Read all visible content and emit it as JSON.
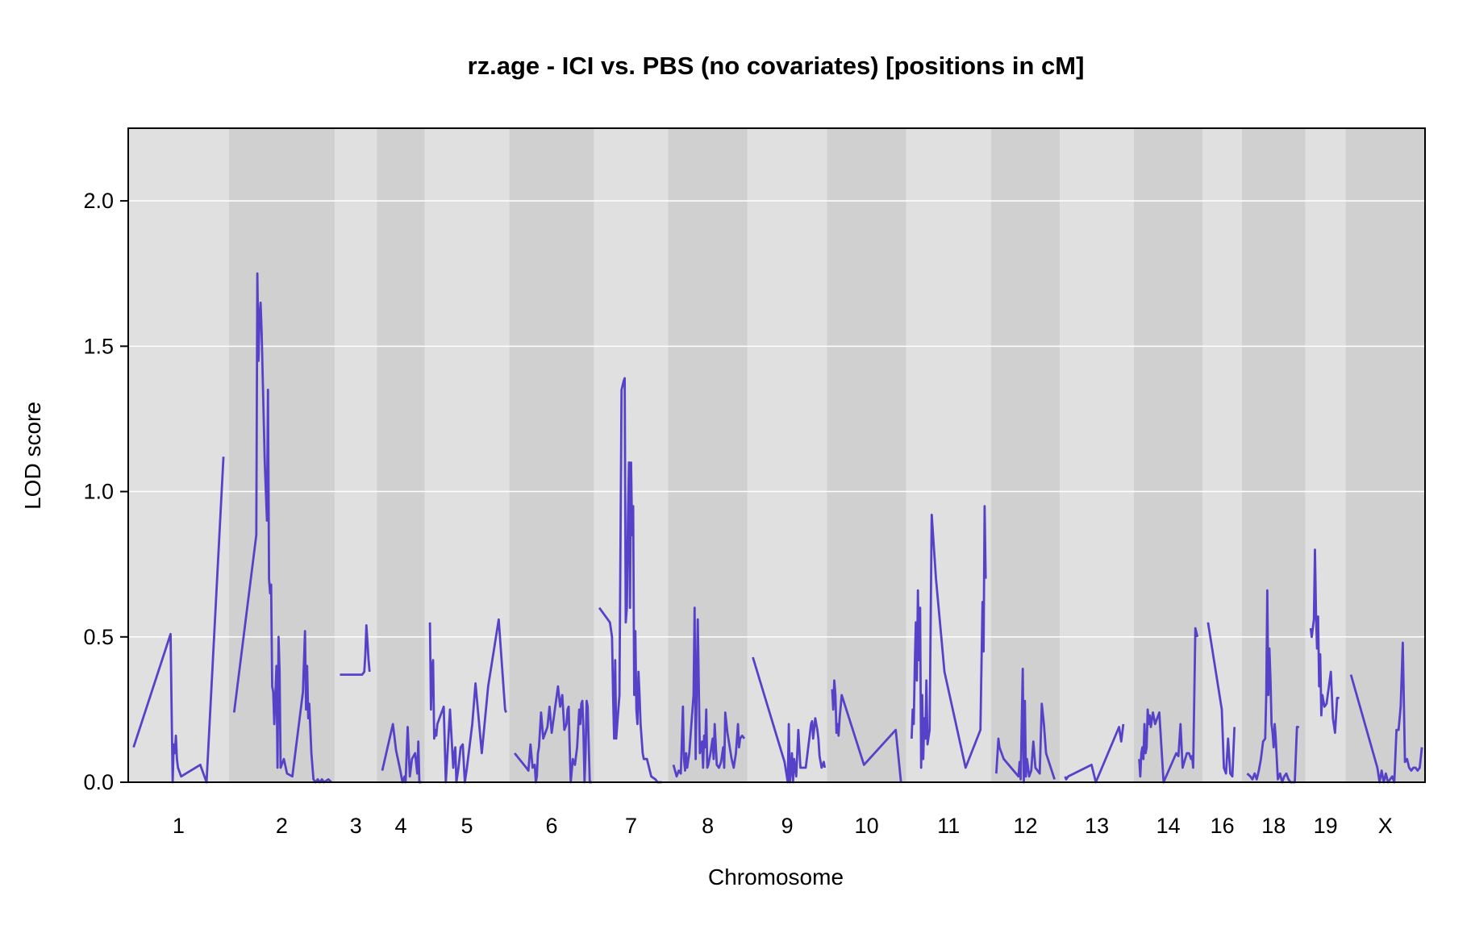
{
  "chart_data": {
    "type": "line",
    "title": "rz.age - ICI vs. PBS (no covariates) [positions in cM]",
    "xlabel": "Chromosome",
    "ylabel": "LOD score",
    "ylim": [
      0,
      2.25
    ],
    "yticks": [
      "0.0",
      "0.5",
      "1.0",
      "1.5",
      "2.0"
    ],
    "ytick_values": [
      0,
      0.5,
      1.0,
      1.5,
      2.0
    ],
    "grid": true,
    "line_color": "#5542c8",
    "band_colors": [
      "#e0e0e0",
      "#d0d0d0"
    ],
    "chromosomes": [
      {
        "name": "1",
        "length": 95,
        "x": [
          5,
          40,
          41,
          42,
          43,
          44,
          45,
          46,
          47,
          50,
          68,
          74,
          90
        ],
        "y": [
          0.12,
          0.51,
          0.25,
          0.0,
          0.13,
          0.1,
          0.16,
          0.08,
          0.05,
          0.02,
          0.06,
          0.0,
          1.12
        ]
      },
      {
        "name": "2",
        "length": 100,
        "x": [
          5,
          26,
          27,
          28,
          29,
          30,
          31,
          32,
          34,
          36,
          37,
          38,
          39,
          40,
          41,
          42,
          43,
          45,
          46,
          47,
          48,
          49,
          50,
          52,
          55,
          60,
          70,
          72,
          73,
          74,
          75,
          76,
          78,
          80,
          82,
          84,
          86,
          88,
          90,
          94,
          97
        ],
        "y": [
          0.24,
          0.85,
          1.75,
          1.45,
          1.6,
          1.65,
          1.55,
          1.4,
          1.1,
          0.9,
          1.35,
          0.7,
          0.65,
          0.68,
          0.33,
          0.31,
          0.2,
          0.4,
          0.05,
          0.5,
          0.38,
          0.05,
          0.06,
          0.08,
          0.03,
          0.02,
          0.31,
          0.52,
          0.25,
          0.4,
          0.22,
          0.27,
          0.1,
          0.01,
          0.0,
          0.01,
          0.0,
          0.01,
          0.0,
          0.01,
          0.0
        ]
      },
      {
        "name": "3",
        "length": 40,
        "x": [
          5,
          26,
          28,
          29,
          30,
          31,
          32,
          33
        ],
        "y": [
          0.37,
          0.37,
          0.38,
          0.44,
          0.54,
          0.48,
          0.42,
          0.38
        ]
      },
      {
        "name": "4",
        "length": 45,
        "x": [
          5,
          15,
          18,
          22,
          24,
          26,
          27,
          29,
          30,
          31,
          33,
          36,
          38,
          39,
          40,
          42
        ],
        "y": [
          0.04,
          0.2,
          0.11,
          0.04,
          0.0,
          0.02,
          0.0,
          0.19,
          0.1,
          0.02,
          0.08,
          0.1,
          0.03,
          0.14,
          0.0,
          0.0
        ]
      },
      {
        "name": "5",
        "length": 80,
        "x": [
          5,
          6,
          7,
          8,
          9,
          10,
          11,
          12,
          14,
          18,
          20,
          24,
          27,
          28,
          29,
          30,
          32,
          34,
          36,
          38,
          40,
          45,
          48,
          54,
          60,
          70,
          76,
          77
        ],
        "y": [
          0.55,
          0.25,
          0.4,
          0.42,
          0.15,
          0.18,
          0.16,
          0.2,
          0.22,
          0.26,
          0.0,
          0.25,
          0.05,
          0.1,
          0.12,
          0.0,
          0.05,
          0.12,
          0.13,
          0.0,
          0.05,
          0.2,
          0.34,
          0.1,
          0.33,
          0.56,
          0.25,
          0.24
        ]
      },
      {
        "name": "6",
        "length": 80,
        "x": [
          5,
          16,
          18,
          20,
          22,
          24,
          25,
          26,
          27,
          28,
          30,
          32,
          36,
          38,
          40,
          46,
          48,
          50,
          52,
          54,
          55,
          56,
          57,
          58,
          60,
          62,
          64,
          66,
          67,
          68,
          69,
          70,
          71,
          72,
          73,
          74,
          76,
          78
        ],
        "y": [
          0.1,
          0.05,
          0.04,
          0.13,
          0.05,
          0.06,
          0.0,
          0.02,
          0.1,
          0.12,
          0.24,
          0.15,
          0.19,
          0.26,
          0.17,
          0.33,
          0.26,
          0.3,
          0.18,
          0.2,
          0.25,
          0.26,
          0.12,
          0.0,
          0.08,
          0.06,
          0.12,
          0.25,
          0.2,
          0.27,
          0.28,
          0.18,
          0.0,
          0.1,
          0.28,
          0.26,
          0.0,
          0.0
        ]
      },
      {
        "name": "7",
        "length": 70,
        "x": [
          5,
          15,
          17,
          18,
          19,
          20,
          21,
          22,
          24,
          26,
          28,
          29,
          30,
          31,
          32,
          33,
          34,
          35,
          36,
          37,
          38,
          39,
          40,
          41,
          42,
          43,
          44,
          45,
          46,
          47,
          50,
          54,
          58,
          60,
          62,
          64
        ],
        "y": [
          0.6,
          0.55,
          0.5,
          0.3,
          0.15,
          0.42,
          0.15,
          0.2,
          0.3,
          1.35,
          1.38,
          1.39,
          0.55,
          0.6,
          0.9,
          1.1,
          0.6,
          1.1,
          0.85,
          0.95,
          0.3,
          0.52,
          0.25,
          0.2,
          0.38,
          0.3,
          0.2,
          0.15,
          0.1,
          0.08,
          0.08,
          0.02,
          0.01,
          0.0,
          0.0,
          0.0
        ]
      },
      {
        "name": "8",
        "length": 75,
        "x": [
          5,
          8,
          10,
          12,
          14,
          15,
          16,
          17,
          18,
          20,
          22,
          24,
          25,
          26,
          28,
          30,
          32,
          33,
          34,
          35,
          36,
          37,
          38,
          40,
          42,
          43,
          44,
          46,
          48,
          50,
          52,
          53,
          54,
          56,
          60,
          62,
          64,
          66,
          67,
          68,
          70,
          72
        ],
        "y": [
          0.06,
          0.02,
          0.04,
          0.03,
          0.26,
          0.08,
          0.04,
          0.1,
          0.05,
          0.1,
          0.2,
          0.3,
          0.6,
          0.08,
          0.56,
          0.1,
          0.14,
          0.05,
          0.16,
          0.12,
          0.25,
          0.05,
          0.06,
          0.1,
          0.15,
          0.08,
          0.2,
          0.06,
          0.05,
          0.07,
          0.12,
          0.05,
          0.24,
          0.17,
          0.08,
          0.05,
          0.1,
          0.2,
          0.12,
          0.15,
          0.16,
          0.15
        ]
      },
      {
        "name": "9",
        "length": 75,
        "x": [
          5,
          35,
          38,
          39,
          40,
          41,
          42,
          43,
          44,
          46,
          48,
          50,
          55,
          60,
          61,
          62,
          64,
          66,
          67,
          68,
          70,
          72,
          73
        ],
        "y": [
          0.43,
          0.07,
          0.0,
          0.2,
          0.0,
          0.04,
          0.1,
          0.0,
          0.08,
          0.02,
          0.18,
          0.05,
          0.05,
          0.2,
          0.21,
          0.15,
          0.22,
          0.18,
          0.15,
          0.09,
          0.05,
          0.07,
          0.05
        ]
      },
      {
        "name": "10",
        "length": 75,
        "x": [
          5,
          6,
          7,
          8,
          9,
          10,
          11,
          12,
          14,
          35,
          65,
          70
        ],
        "y": [
          0.32,
          0.25,
          0.35,
          0.3,
          0.17,
          0.2,
          0.16,
          0.22,
          0.3,
          0.06,
          0.18,
          0.0
        ]
      },
      {
        "name": "11",
        "length": 80,
        "x": [
          5,
          6,
          7,
          8,
          9,
          10,
          11,
          12,
          13,
          14,
          15,
          16,
          17,
          18,
          19,
          20,
          22,
          24,
          28,
          36,
          56,
          70,
          72,
          73,
          74,
          75
        ],
        "y": [
          0.15,
          0.25,
          0.2,
          0.4,
          0.55,
          0.35,
          0.66,
          0.42,
          0.6,
          0.05,
          0.3,
          0.08,
          0.22,
          0.15,
          0.35,
          0.13,
          0.18,
          0.92,
          0.7,
          0.38,
          0.05,
          0.18,
          0.62,
          0.45,
          0.95,
          0.7
        ]
      },
      {
        "name": "12",
        "length": 65,
        "x": [
          5,
          7,
          8,
          12,
          26,
          27,
          28,
          30,
          31,
          32,
          33,
          34,
          35,
          36,
          38,
          40,
          42,
          46,
          48,
          50,
          52,
          60
        ],
        "y": [
          0.03,
          0.15,
          0.12,
          0.08,
          0.02,
          0.07,
          0.01,
          0.39,
          0.0,
          0.28,
          0.02,
          0.08,
          0.05,
          0.02,
          0.04,
          0.14,
          0.05,
          0.03,
          0.27,
          0.2,
          0.1,
          0.01
        ]
      },
      {
        "name": "13",
        "length": 70,
        "x": [
          5,
          6,
          8,
          30,
          34,
          56,
          58,
          60
        ],
        "y": [
          0.02,
          0.01,
          0.02,
          0.06,
          0.0,
          0.19,
          0.14,
          0.2
        ]
      },
      {
        "name": "14",
        "length": 65,
        "x": [
          5,
          6,
          7,
          8,
          9,
          10,
          11,
          12,
          13,
          14,
          15,
          16,
          18,
          20,
          24,
          28,
          40,
          42,
          44,
          46,
          50,
          52,
          54,
          55,
          56,
          58,
          60
        ],
        "y": [
          0.08,
          0.02,
          0.1,
          0.12,
          0.08,
          0.2,
          0.1,
          0.12,
          0.25,
          0.2,
          0.23,
          0.19,
          0.24,
          0.2,
          0.24,
          0.0,
          0.1,
          0.09,
          0.2,
          0.05,
          0.1,
          0.1,
          0.08,
          0.09,
          0.05,
          0.53,
          0.5
        ]
      },
      {
        "name": "16",
        "length": 37,
        "x": [
          5,
          18,
          20,
          22,
          24,
          26,
          28,
          30
        ],
        "y": [
          0.55,
          0.25,
          0.05,
          0.03,
          0.15,
          0.03,
          0.02,
          0.19
        ]
      },
      {
        "name": "18",
        "length": 60,
        "x": [
          5,
          8,
          10,
          12,
          14,
          16,
          18,
          20,
          22,
          23,
          24,
          25,
          26,
          27,
          28,
          29,
          30,
          31,
          32,
          33,
          34,
          36,
          38,
          40,
          42,
          44,
          46,
          48,
          50,
          52,
          54
        ],
        "y": [
          0.03,
          0.02,
          0.01,
          0.03,
          0.01,
          0.04,
          0.08,
          0.14,
          0.15,
          0.3,
          0.66,
          0.3,
          0.46,
          0.35,
          0.2,
          0.17,
          0.12,
          0.2,
          0.15,
          0.08,
          0.01,
          0.03,
          0.0,
          0.02,
          0.03,
          0.01,
          0.0,
          0.0,
          0.0,
          0.19,
          0.19
        ]
      },
      {
        "name": "19",
        "length": 38,
        "x": [
          5,
          6,
          8,
          9,
          10,
          11,
          12,
          13,
          14,
          15,
          16,
          18,
          20,
          24,
          26,
          28,
          30,
          32
        ],
        "y": [
          0.53,
          0.5,
          0.56,
          0.8,
          0.58,
          0.46,
          0.57,
          0.33,
          0.44,
          0.23,
          0.3,
          0.26,
          0.27,
          0.38,
          0.22,
          0.17,
          0.29,
          0.29
        ]
      },
      {
        "name": "X",
        "length": 75,
        "x": [
          5,
          30,
          32,
          34,
          36,
          38,
          40,
          44,
          46,
          48,
          50,
          52,
          54,
          56,
          58,
          60,
          62,
          64,
          66,
          68,
          70,
          72
        ],
        "y": [
          0.37,
          0.05,
          0.0,
          0.04,
          0.0,
          0.03,
          0.0,
          0.02,
          0.0,
          0.18,
          0.18,
          0.26,
          0.48,
          0.07,
          0.08,
          0.05,
          0.04,
          0.05,
          0.05,
          0.04,
          0.05,
          0.12
        ]
      }
    ]
  }
}
